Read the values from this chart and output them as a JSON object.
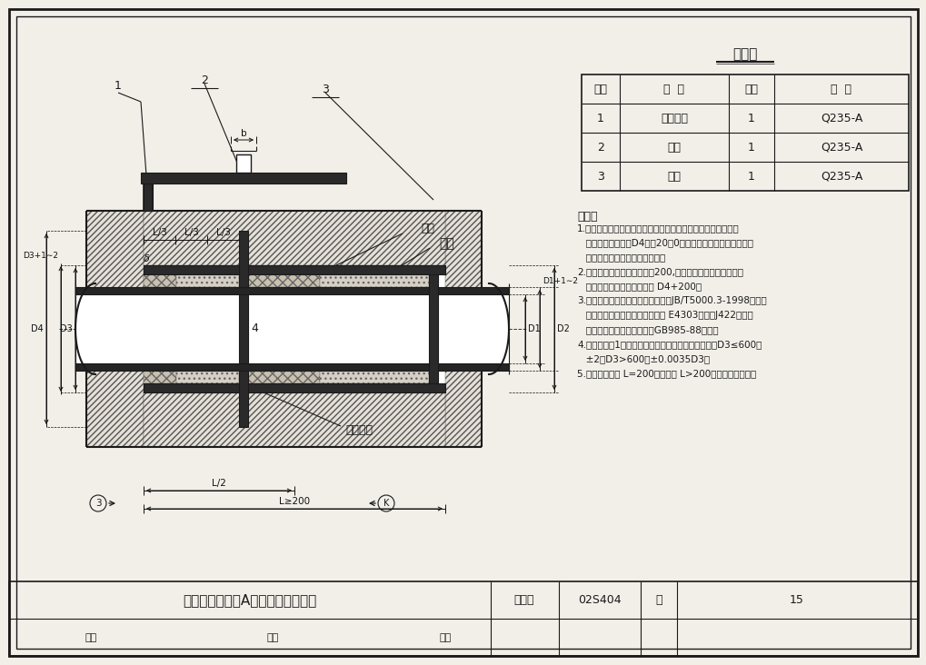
{
  "bg_color": "#f2efe9",
  "line_color": "#1a1a1a",
  "title_table": "材料表",
  "table_headers": [
    "序号",
    "名  称",
    "数量",
    "材  料"
  ],
  "table_rows": [
    [
      "1",
      "钒制套管",
      "1",
      "Q235-A"
    ],
    [
      "2",
      "羼环",
      "1",
      "Q235-A"
    ],
    [
      "3",
      "挡圈",
      "1",
      "Q235-A"
    ]
  ],
  "note_title": "说明：",
  "notes_line1": "1.套管穿墙处如遇非混凝土墙壁时，应改用混凝土墙壁，其浇注",
  "notes_line2": "   围应比羼环直径（D4）大20　0而且必须将套管一次浇固于墙",
  "notes_line3": "   内．套管内的填料应紧密搞实．",
  "notes_line4": "2.穿管处混凝土墙厉应不小于200,否则应使墙壁一边或两边加",
  "notes_line5": "   厕．加厕部分的直径至少为 D4+200．",
  "notes_line6": "3.焊接结构尺寸公差与形位公差按照JB/T5000.3-1998执行．",
  "notes_line7": "   焊接采用手工电弧焊，焊条型号 E4303，牌号J422．焊缝",
  "notes_line8": "   坡口的基本形式与尺寸按照GB985-88执行．",
  "notes_line9": "4.当套管（件1）采用卷制成型时，周长允许偏差为：D3≤600，",
  "notes_line10": "   ±2，D3>600，±0.0035D3．",
  "notes_line11": "5.套管的重量以 L=200计算，当 L>200时，应另行计算．",
  "bottom_title": "刚性防水套管（A型）安装图（一）",
  "bottom_label1": "图集号",
  "bottom_value1": "02S404",
  "bottom_label2": "页",
  "bottom_value2": "15",
  "sign_audit": "审核",
  "sign_check": "校对",
  "sign_design": "设计"
}
